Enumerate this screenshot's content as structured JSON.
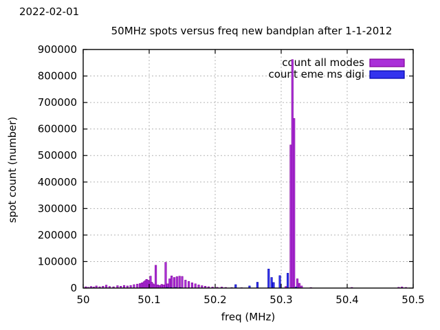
{
  "header": {
    "date": "2022-02-01"
  },
  "chart_data": {
    "type": "bar",
    "title": "50MHz spots versus freq new bandplan after 1-1-2012",
    "xlabel": "freq (MHz)",
    "ylabel": "spot count (number)",
    "xlim": [
      50.0,
      50.5
    ],
    "ylim": [
      0,
      900000
    ],
    "x_ticks": [
      50.0,
      50.1,
      50.2,
      50.3,
      50.4,
      50.5
    ],
    "x_tick_labels": [
      "50",
      "50.1",
      "50.2",
      "50.3",
      "50.4",
      "50.5"
    ],
    "y_ticks": [
      0,
      100000,
      200000,
      300000,
      400000,
      500000,
      600000,
      700000,
      800000,
      900000
    ],
    "y_tick_labels": [
      "0",
      "100000",
      "200000",
      "300000",
      "400000",
      "500000",
      "600000",
      "700000",
      "800000",
      "900000"
    ],
    "grid": true,
    "grid_style": "dotted-gray",
    "legend_position": "top-right-inside",
    "series": [
      {
        "name": "count all modes",
        "color": "#aa30d8",
        "border_color": "#80009a",
        "points": [
          [
            50.004,
            5000
          ],
          [
            50.008,
            3000
          ],
          [
            50.012,
            6000
          ],
          [
            50.016,
            4000
          ],
          [
            50.02,
            8000
          ],
          [
            50.025,
            5000
          ],
          [
            50.03,
            7000
          ],
          [
            50.035,
            11000
          ],
          [
            50.04,
            6000
          ],
          [
            50.046,
            5000
          ],
          [
            50.052,
            9000
          ],
          [
            50.057,
            7000
          ],
          [
            50.062,
            10000
          ],
          [
            50.067,
            8000
          ],
          [
            50.072,
            10000
          ],
          [
            50.077,
            13000
          ],
          [
            50.082,
            15000
          ],
          [
            50.086,
            17000
          ],
          [
            50.089,
            20000
          ],
          [
            50.092,
            24000
          ],
          [
            50.094,
            28000
          ],
          [
            50.096,
            33000
          ],
          [
            50.098,
            30000
          ],
          [
            50.1,
            26000
          ],
          [
            50.102,
            45000
          ],
          [
            50.104,
            22000
          ],
          [
            50.106,
            16000
          ],
          [
            50.108,
            13000
          ],
          [
            50.11,
            86000
          ],
          [
            50.113,
            12000
          ],
          [
            50.116,
            10000
          ],
          [
            50.119,
            14000
          ],
          [
            50.122,
            12000
          ],
          [
            50.125,
            97000
          ],
          [
            50.128,
            16000
          ],
          [
            50.131,
            35000
          ],
          [
            50.134,
            46000
          ],
          [
            50.138,
            40000
          ],
          [
            50.142,
            43000
          ],
          [
            50.146,
            45000
          ],
          [
            50.15,
            44000
          ],
          [
            50.155,
            30000
          ],
          [
            50.16,
            25000
          ],
          [
            50.165,
            20000
          ],
          [
            50.17,
            16000
          ],
          [
            50.175,
            12000
          ],
          [
            50.18,
            9000
          ],
          [
            50.185,
            7000
          ],
          [
            50.19,
            5000
          ],
          [
            50.196,
            4000
          ],
          [
            50.203,
            3000
          ],
          [
            50.21,
            4000
          ],
          [
            50.216,
            2500
          ],
          [
            50.225,
            2000
          ],
          [
            50.24,
            1500
          ],
          [
            50.307,
            6000
          ],
          [
            50.3145,
            540000
          ],
          [
            50.317,
            862000
          ],
          [
            50.3195,
            640000
          ],
          [
            50.3245,
            35000
          ],
          [
            50.3275,
            18000
          ],
          [
            50.331,
            8000
          ],
          [
            50.345,
            2000
          ],
          [
            50.407,
            2500
          ],
          [
            50.478,
            3000
          ],
          [
            50.483,
            4500
          ],
          [
            50.489,
            2500
          ]
        ]
      },
      {
        "name": "count eme ms digi",
        "color": "#3333ee",
        "border_color": "#0000aa",
        "points": [
          [
            50.127,
            2500
          ],
          [
            50.133,
            2000
          ],
          [
            50.14,
            2500
          ],
          [
            50.147,
            2000
          ],
          [
            50.231,
            13000
          ],
          [
            50.252,
            8000
          ],
          [
            50.264,
            22000
          ],
          [
            50.281,
            72000
          ],
          [
            50.2855,
            40000
          ],
          [
            50.2885,
            21000
          ],
          [
            50.298,
            47000
          ],
          [
            50.31,
            56000
          ],
          [
            50.3225,
            4000
          ]
        ]
      }
    ]
  }
}
